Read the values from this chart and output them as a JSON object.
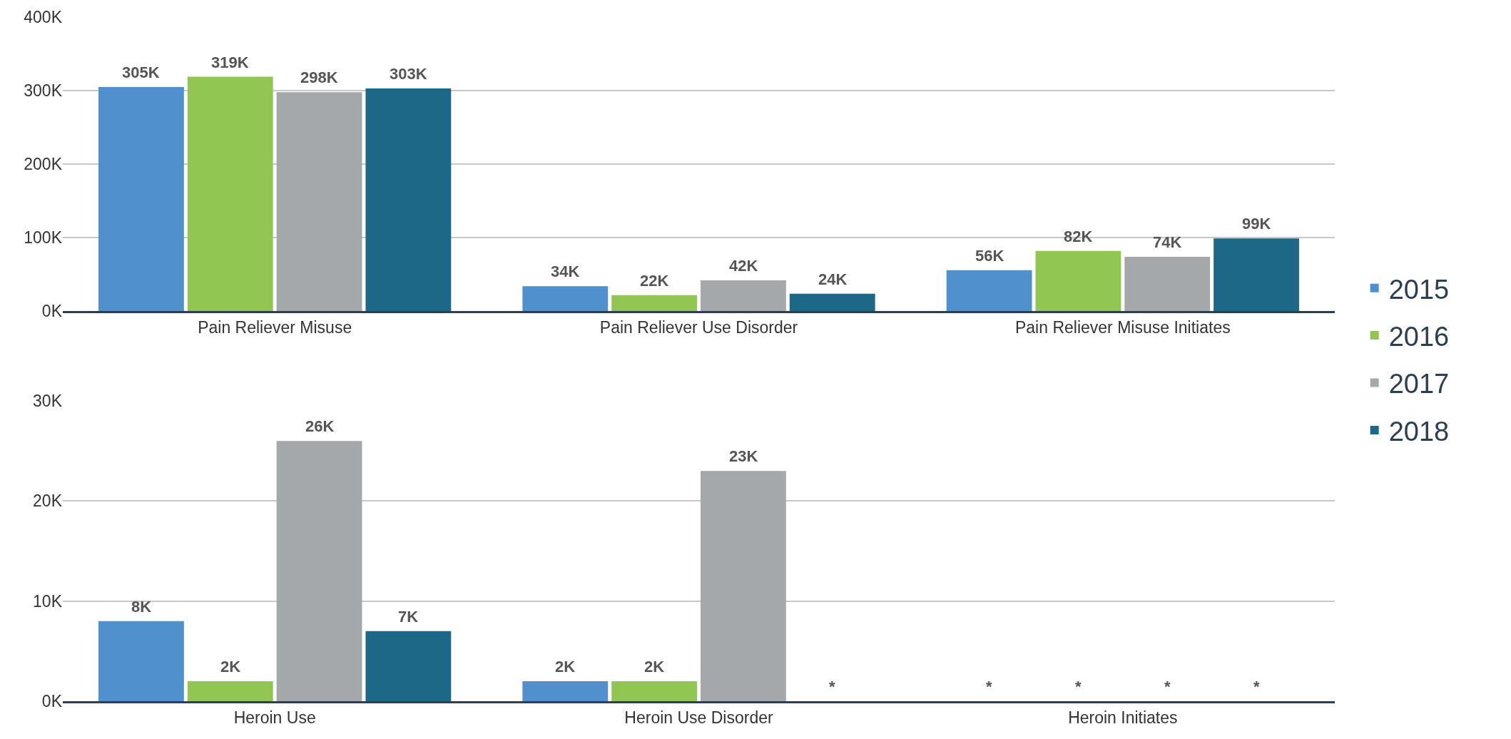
{
  "chart_data": [
    {
      "type": "bar",
      "categories": [
        "Pain Reliever Misuse",
        "Pain Reliever Use Disorder",
        "Pain Reliever Misuse Initiates"
      ],
      "series": [
        {
          "name": "2015",
          "color": "#4f90cd",
          "values": [
            305000,
            34000,
            56000
          ],
          "value_labels": [
            "305K",
            "34K",
            "56K"
          ]
        },
        {
          "name": "2016",
          "color": "#92c652",
          "values": [
            319000,
            22000,
            82000
          ],
          "value_labels": [
            "319K",
            "22K",
            "82K"
          ]
        },
        {
          "name": "2017",
          "color": "#a5a8ab",
          "values": [
            298000,
            42000,
            74000
          ],
          "value_labels": [
            "298K",
            "42K",
            "74K"
          ]
        },
        {
          "name": "2018",
          "color": "#1c6886",
          "values": [
            303000,
            24000,
            99000
          ],
          "value_labels": [
            "303K",
            "24K",
            "99K"
          ]
        }
      ],
      "ylim": [
        0,
        400000
      ],
      "yticks": [
        {
          "value": 0,
          "label": "0K"
        },
        {
          "value": 100000,
          "label": "100K"
        },
        {
          "value": 200000,
          "label": "200K"
        },
        {
          "value": 300000,
          "label": "300K"
        },
        {
          "value": 400000,
          "label": "400K"
        }
      ],
      "grid": "y",
      "legend": "right"
    },
    {
      "type": "bar",
      "categories": [
        "Heroin Use",
        "Heroin Use Disorder",
        "Heroin Initiates"
      ],
      "series": [
        {
          "name": "2015",
          "color": "#4f90cd",
          "values": [
            8000,
            2000,
            null
          ],
          "value_labels": [
            "8K",
            "2K",
            "*"
          ]
        },
        {
          "name": "2016",
          "color": "#92c652",
          "values": [
            2000,
            2000,
            null
          ],
          "value_labels": [
            "2K",
            "2K",
            "*"
          ]
        },
        {
          "name": "2017",
          "color": "#a5a8ab",
          "values": [
            26000,
            23000,
            null
          ],
          "value_labels": [
            "26K",
            "23K",
            "*"
          ]
        },
        {
          "name": "2018",
          "color": "#1c6886",
          "values": [
            7000,
            null,
            null
          ],
          "value_labels": [
            "7K",
            "*",
            "*"
          ]
        }
      ],
      "ylim": [
        0,
        30000
      ],
      "yticks": [
        {
          "value": 0,
          "label": "0K"
        },
        {
          "value": 10000,
          "label": "10K"
        },
        {
          "value": 20000,
          "label": "20K"
        },
        {
          "value": 30000,
          "label": "30K"
        }
      ],
      "grid": "y",
      "legend": "right"
    }
  ]
}
